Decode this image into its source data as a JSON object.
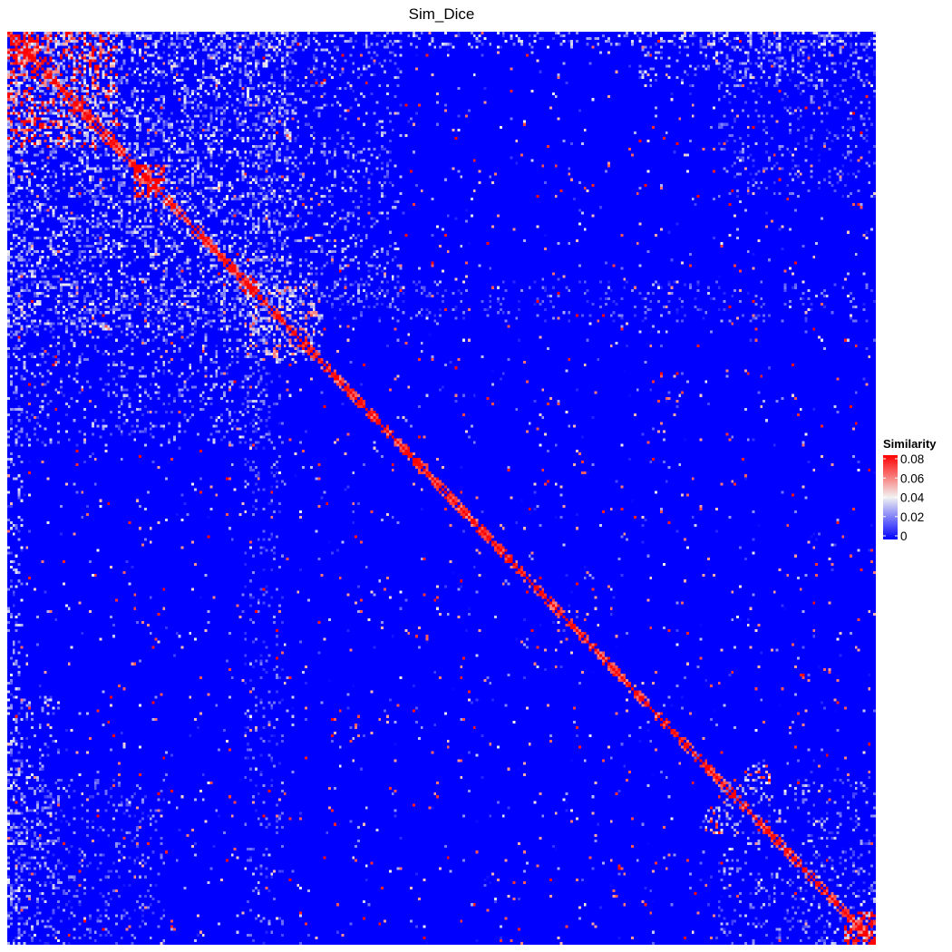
{
  "chart_data": {
    "type": "heatmap",
    "title": "Sim_Dice",
    "xlabel": "",
    "ylabel": "",
    "matrix_dimension": 330,
    "symmetric": true,
    "diagonal_value": 0.08,
    "value_range": [
      0,
      0.08
    ],
    "grid": false,
    "legend": {
      "title": "Similarity",
      "placement": "right",
      "ticks": [
        0.08,
        0.06,
        0.04,
        0.02,
        0
      ],
      "tick_labels": [
        "0.08",
        "0.06",
        "0.04",
        "0.02",
        "0"
      ]
    },
    "colorscale": [
      {
        "value": 0,
        "color": "#0000ff"
      },
      {
        "value": 0.04,
        "color": "#f2f2f2"
      },
      {
        "value": 0.08,
        "color": "#ff0000"
      }
    ],
    "blocks": [
      {
        "rows": [
          0,
          42
        ],
        "cols": [
          0,
          42
        ],
        "mean": 0.055
      },
      {
        "rows": [
          0,
          12
        ],
        "cols": [
          0,
          12
        ],
        "mean": 0.075
      },
      {
        "rows": [
          0,
          110
        ],
        "cols": [
          0,
          110
        ],
        "mean": 0.022
      },
      {
        "rows": [
          0,
          150
        ],
        "cols": [
          0,
          100
        ],
        "mean": 0.018
      },
      {
        "rows": [
          48,
          60
        ],
        "cols": [
          48,
          60
        ],
        "mean": 0.07
      },
      {
        "rows": [
          0,
          330
        ],
        "cols": [
          0,
          6
        ],
        "mean": 0.02
      },
      {
        "rows": [
          88,
          95
        ],
        "cols": [
          88,
          95
        ],
        "mean": 0.06
      },
      {
        "rows": [
          90,
          105
        ],
        "cols": [
          0,
          330
        ],
        "mean": 0.012
      },
      {
        "rows": [
          90,
          120
        ],
        "cols": [
          90,
          120
        ],
        "mean": 0.035
      },
      {
        "rows": [
          0,
          20
        ],
        "cols": [
          240,
          330
        ],
        "mean": 0.02
      },
      {
        "rows": [
          270,
          330
        ],
        "cols": [
          0,
          60
        ],
        "mean": 0.014
      },
      {
        "rows": [
          270,
          330
        ],
        "cols": [
          270,
          330
        ],
        "mean": 0.018
      },
      {
        "rows": [
          280,
          290
        ],
        "cols": [
          265,
          275
        ],
        "mean": 0.04
      },
      {
        "rows": [
          318,
          330
        ],
        "cols": [
          318,
          330
        ],
        "mean": 0.075
      }
    ]
  }
}
